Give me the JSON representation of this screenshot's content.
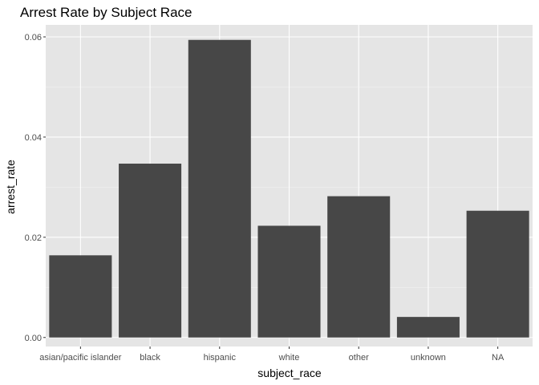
{
  "chart_data": {
    "type": "bar",
    "title": "Arrest Rate by Subject Race",
    "xlabel": "subject_race",
    "ylabel": "arrest_rate",
    "categories": [
      "asian/pacific islander",
      "black",
      "hispanic",
      "white",
      "other",
      "unknown",
      "NA"
    ],
    "values": [
      0.0164,
      0.0347,
      0.0594,
      0.0223,
      0.0282,
      0.0041,
      0.0253
    ],
    "ylim": [
      -0.0018,
      0.0624
    ],
    "yticks": [
      0.0,
      0.02,
      0.04,
      0.06
    ],
    "ytick_labels": [
      "0.00",
      "0.02",
      "0.04",
      "0.06"
    ],
    "grid": true,
    "legend": "none",
    "colors": {
      "bar": "#474747",
      "panel": "#e5e5e5",
      "grid_major": "#ffffff",
      "grid_minor": "#f2f2f2"
    }
  }
}
